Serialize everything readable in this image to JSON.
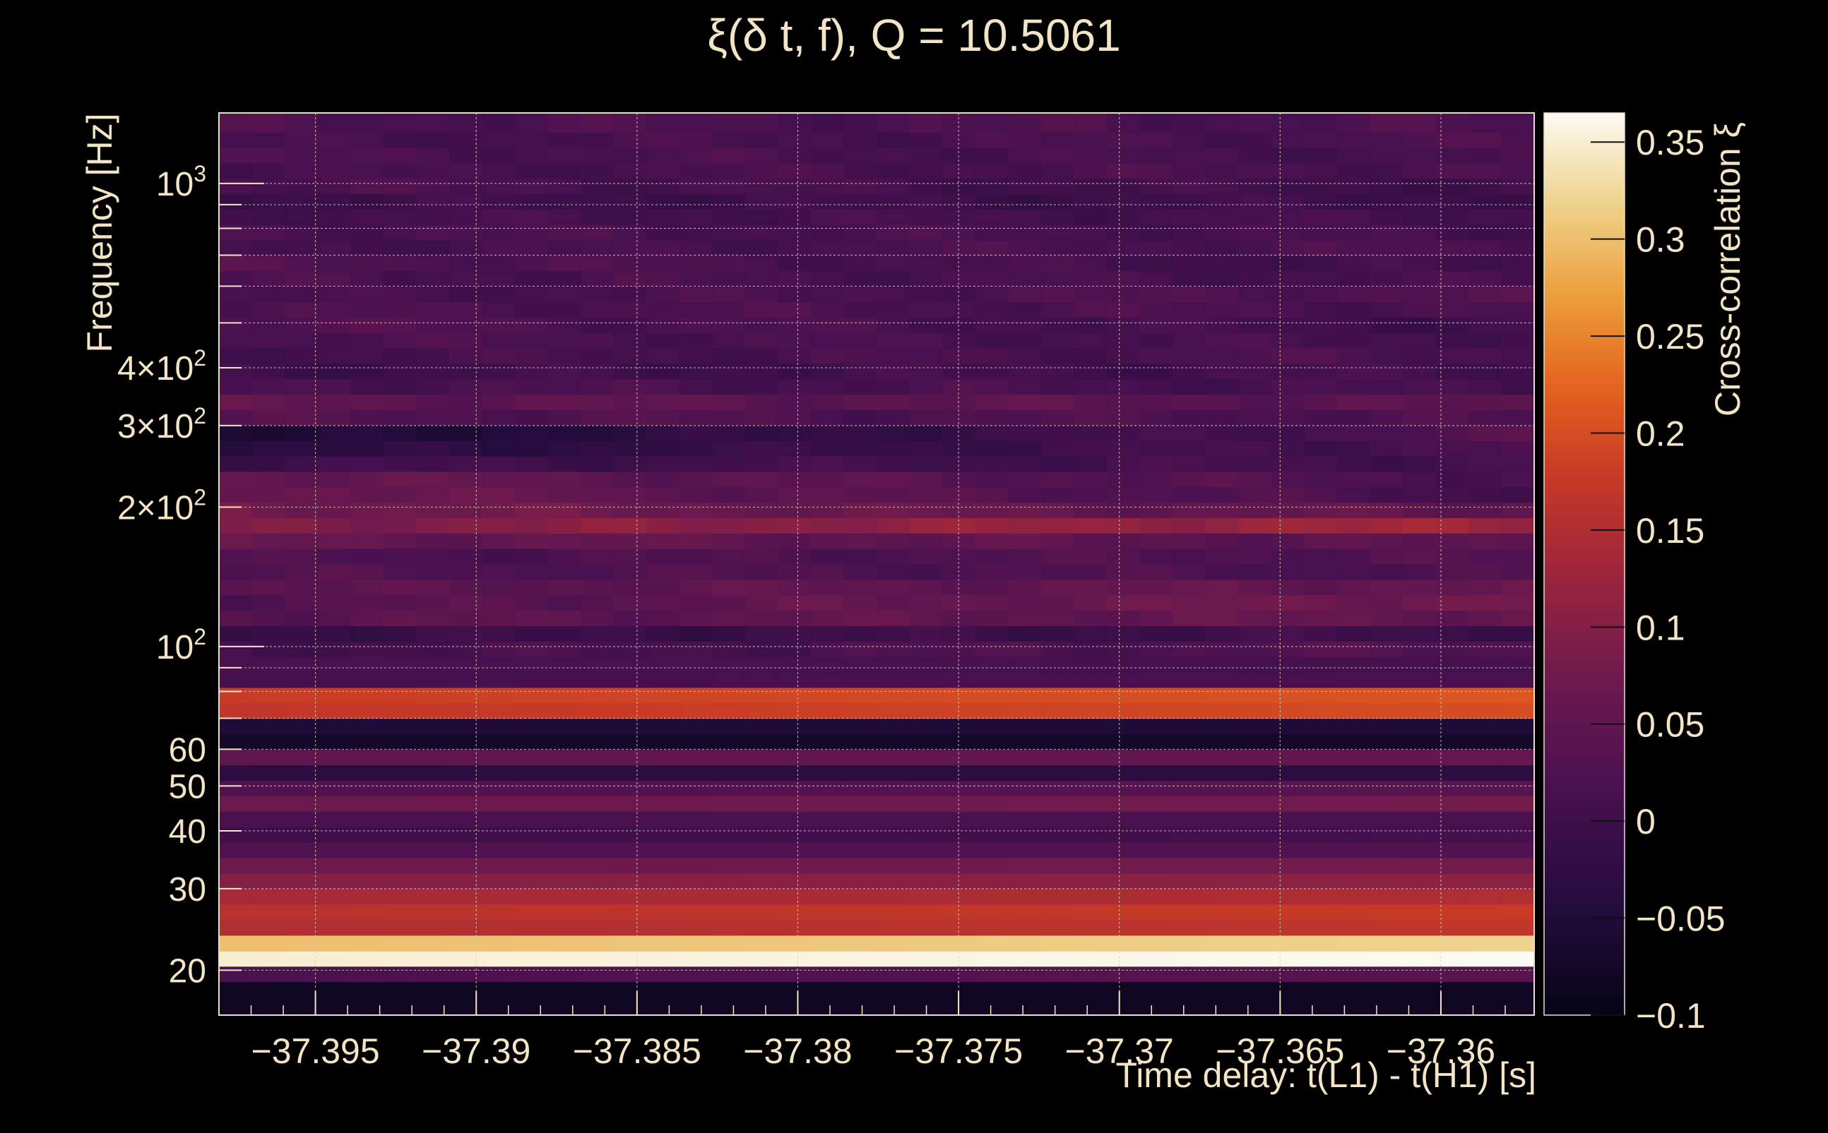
{
  "chart_data": {
    "type": "heatmap",
    "title": "ξ(δ t, f), Q = 10.5061",
    "xlabel": "Time delay: t(L1) - t(H1) [s]",
    "ylabel": "Frequency [Hz]",
    "colorbar_label": "Cross-correlation ξ",
    "x_range": [
      -37.398,
      -37.3571
    ],
    "y_range": [
      16,
      1420
    ],
    "y_scale": "log",
    "z_range": [
      -0.1,
      0.365
    ],
    "grid": true,
    "colormap": "inferno",
    "x_ticks": [
      {
        "value": -37.395,
        "label": "−37.395"
      },
      {
        "value": -37.39,
        "label": "−37.39"
      },
      {
        "value": -37.385,
        "label": "−37.385"
      },
      {
        "value": -37.38,
        "label": "−37.38"
      },
      {
        "value": -37.375,
        "label": "−37.375"
      },
      {
        "value": -37.37,
        "label": "−37.37"
      },
      {
        "value": -37.365,
        "label": "−37.365"
      },
      {
        "value": -37.36,
        "label": "−37.36"
      }
    ],
    "y_ticks": [
      {
        "value": 20,
        "label": "20"
      },
      {
        "value": 30,
        "label": "30"
      },
      {
        "value": 40,
        "label": "40"
      },
      {
        "value": 50,
        "label": "50"
      },
      {
        "value": 60,
        "label": "60"
      },
      {
        "value": 100,
        "label": "10",
        "sup": "2"
      },
      {
        "value": 200,
        "label": "2×10",
        "sup": "2"
      },
      {
        "value": 300,
        "label": "3×10",
        "sup": "2"
      },
      {
        "value": 400,
        "label": "4×10",
        "sup": "2"
      },
      {
        "value": 1000,
        "label": "10",
        "sup": "3"
      }
    ],
    "colorbar_ticks": [
      {
        "value": 0.35,
        "label": "0.35"
      },
      {
        "value": 0.3,
        "label": "0.3"
      },
      {
        "value": 0.25,
        "label": "0.25"
      },
      {
        "value": 0.2,
        "label": "0.2"
      },
      {
        "value": 0.15,
        "label": "0.15"
      },
      {
        "value": 0.1,
        "label": "0.1"
      },
      {
        "value": 0.05,
        "label": "0.05"
      },
      {
        "value": 0,
        "label": "0"
      },
      {
        "value": -0.05,
        "label": "−0.05"
      },
      {
        "value": -0.1,
        "label": "−0.1"
      }
    ],
    "frequency_bands": [
      {
        "f_low": 16,
        "f_high": 18.9,
        "value": -0.08,
        "end_value": -0.08
      },
      {
        "f_low": 18.9,
        "f_high": 20.4,
        "value": 0.02,
        "end_value": 0.04
      },
      {
        "f_low": 20.4,
        "f_high": 22.0,
        "value": 0.35,
        "end_value": 0.365
      },
      {
        "f_low": 22.0,
        "f_high": 23.8,
        "value": 0.3,
        "end_value": 0.32
      },
      {
        "f_low": 23.8,
        "f_high": 25.7,
        "value": 0.15,
        "end_value": 0.17
      },
      {
        "f_low": 25.7,
        "f_high": 27.8,
        "value": 0.16,
        "end_value": 0.18
      },
      {
        "f_low": 27.8,
        "f_high": 30.0,
        "value": 0.14,
        "end_value": 0.15
      },
      {
        "f_low": 30.0,
        "f_high": 32.4,
        "value": 0.1,
        "end_value": 0.11
      },
      {
        "f_low": 32.4,
        "f_high": 35.0,
        "value": 0.07,
        "end_value": 0.08
      },
      {
        "f_low": 35.0,
        "f_high": 37.8,
        "value": 0.03,
        "end_value": 0.03
      },
      {
        "f_low": 37.8,
        "f_high": 40.8,
        "value": 0.0,
        "end_value": 0.01
      },
      {
        "f_low": 40.8,
        "f_high": 44.1,
        "value": 0.02,
        "end_value": 0.02
      },
      {
        "f_low": 44.1,
        "f_high": 47.6,
        "value": 0.07,
        "end_value": 0.08
      },
      {
        "f_low": 47.6,
        "f_high": 51.4,
        "value": 0.03,
        "end_value": 0.04
      },
      {
        "f_low": 51.4,
        "f_high": 55.5,
        "value": -0.03,
        "end_value": -0.03
      },
      {
        "f_low": 55.5,
        "f_high": 60.0,
        "value": 0.05,
        "end_value": 0.06
      },
      {
        "f_low": 60.0,
        "f_high": 64.8,
        "value": -0.07,
        "end_value": -0.07
      },
      {
        "f_low": 64.8,
        "f_high": 70.0,
        "value": -0.05,
        "end_value": -0.05
      },
      {
        "f_low": 70.0,
        "f_high": 75.6,
        "value": 0.17,
        "end_value": 0.2
      },
      {
        "f_low": 75.6,
        "f_high": 81.6,
        "value": 0.18,
        "end_value": 0.21
      },
      {
        "f_low": 81.6,
        "f_high": 88.1,
        "value": 0.01,
        "end_value": 0.02
      },
      {
        "f_low": 88.1,
        "f_high": 95.1,
        "value": 0.02,
        "end_value": 0.01
      },
      {
        "f_low": 95.1,
        "f_high": 102.7,
        "value": 0.01,
        "end_value": 0.03
      },
      {
        "f_low": 102.7,
        "f_high": 110.9,
        "value": -0.01,
        "end_value": 0.0
      },
      {
        "f_low": 110.9,
        "f_high": 119.8,
        "value": 0.04,
        "end_value": 0.06
      },
      {
        "f_low": 119.8,
        "f_high": 129.3,
        "value": 0.03,
        "end_value": 0.08
      },
      {
        "f_low": 129.3,
        "f_high": 139.6,
        "value": 0.04,
        "end_value": 0.06
      },
      {
        "f_low": 139.6,
        "f_high": 150.8,
        "value": 0.03,
        "end_value": 0.02
      },
      {
        "f_low": 150.8,
        "f_high": 162.8,
        "value": 0.02,
        "end_value": 0.03
      },
      {
        "f_low": 162.8,
        "f_high": 175.8,
        "value": 0.06,
        "end_value": 0.04
      },
      {
        "f_low": 175.8,
        "f_high": 189.8,
        "value": 0.09,
        "end_value": 0.13
      },
      {
        "f_low": 189.8,
        "f_high": 204.9,
        "value": 0.08,
        "end_value": 0.05
      },
      {
        "f_low": 204.9,
        "f_high": 221.3,
        "value": 0.07,
        "end_value": 0.01
      },
      {
        "f_low": 221.3,
        "f_high": 238.9,
        "value": 0.06,
        "end_value": 0.02
      },
      {
        "f_low": 238.9,
        "f_high": 258.0,
        "value": 0.0,
        "end_value": 0.01
      },
      {
        "f_low": 258.0,
        "f_high": 278.5,
        "value": -0.04,
        "end_value": 0.02
      },
      {
        "f_low": 278.5,
        "f_high": 300.7,
        "value": -0.06,
        "end_value": 0.03
      },
      {
        "f_low": 300.7,
        "f_high": 324.7,
        "value": 0.03,
        "end_value": 0.02
      },
      {
        "f_low": 324.7,
        "f_high": 350.6,
        "value": 0.05,
        "end_value": 0.04
      },
      {
        "f_low": 350.6,
        "f_high": 378.5,
        "value": 0.02,
        "end_value": 0.01
      },
      {
        "f_low": 378.5,
        "f_high": 408.7,
        "value": 0.0,
        "end_value": 0.01
      },
      {
        "f_low": 408.7,
        "f_high": 441.3,
        "value": 0.01,
        "end_value": 0.02
      },
      {
        "f_low": 441.3,
        "f_high": 476.4,
        "value": 0.02,
        "end_value": 0.01
      },
      {
        "f_low": 476.4,
        "f_high": 514.4,
        "value": 0.03,
        "end_value": 0.0
      },
      {
        "f_low": 514.4,
        "f_high": 555.4,
        "value": 0.02,
        "end_value": 0.02
      },
      {
        "f_low": 555.4,
        "f_high": 599.6,
        "value": 0.01,
        "end_value": 0.03
      },
      {
        "f_low": 599.6,
        "f_high": 647.4,
        "value": 0.02,
        "end_value": 0.01
      },
      {
        "f_low": 647.4,
        "f_high": 699.0,
        "value": 0.03,
        "end_value": 0.0
      },
      {
        "f_low": 699.0,
        "f_high": 754.7,
        "value": 0.01,
        "end_value": 0.02
      },
      {
        "f_low": 754.7,
        "f_high": 814.8,
        "value": 0.02,
        "end_value": 0.01
      },
      {
        "f_low": 814.8,
        "f_high": 879.8,
        "value": 0.01,
        "end_value": 0.01
      },
      {
        "f_low": 879.8,
        "f_high": 949.9,
        "value": 0.0,
        "end_value": 0.0
      },
      {
        "f_low": 949.9,
        "f_high": 1025.6,
        "value": 0.02,
        "end_value": 0.0
      },
      {
        "f_low": 1025.6,
        "f_high": 1107.3,
        "value": 0.01,
        "end_value": 0.02
      },
      {
        "f_low": 1107.3,
        "f_high": 1195.5,
        "value": 0.02,
        "end_value": 0.01
      },
      {
        "f_low": 1195.5,
        "f_high": 1290.8,
        "value": 0.01,
        "end_value": 0.02
      },
      {
        "f_low": 1290.8,
        "f_high": 1420.0,
        "value": 0.02,
        "end_value": 0.02
      }
    ]
  }
}
